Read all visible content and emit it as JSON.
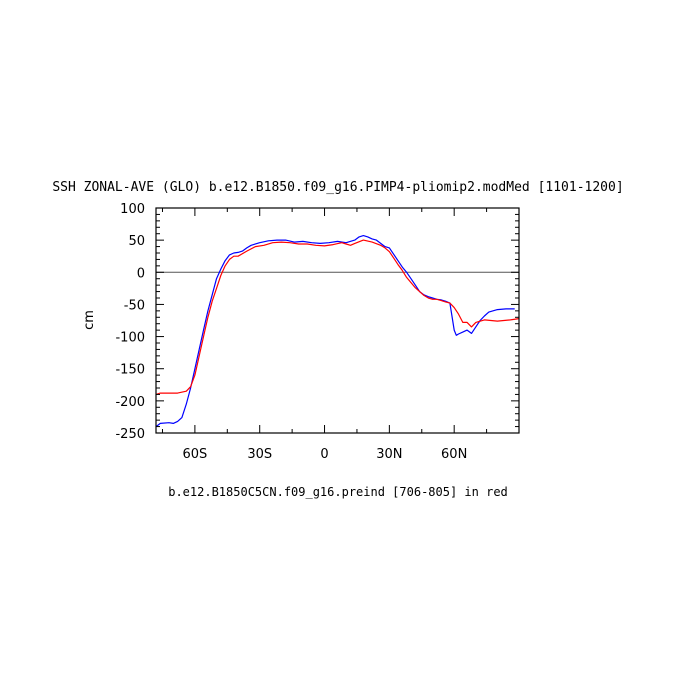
{
  "chart_data": {
    "type": "line",
    "title": "SSH ZONAL-AVE (GLO) b.e12.B1850.f09_g16.PIMP4-pliomip2.modMed [1101-1200]",
    "caption": "b.e12.B1850C5CN.f09_g16.preind [706-805] in red",
    "ylabel": "cm",
    "xlim": [
      -78,
      90
    ],
    "ylim": [
      -250,
      100
    ],
    "x_ticks": [
      {
        "value": -60,
        "label": "60S"
      },
      {
        "value": -30,
        "label": "30S"
      },
      {
        "value": 0,
        "label": "0"
      },
      {
        "value": 30,
        "label": "30N"
      },
      {
        "value": 60,
        "label": "60N"
      }
    ],
    "y_ticks": [
      {
        "value": 100,
        "label": "100"
      },
      {
        "value": 50,
        "label": "50"
      },
      {
        "value": 0,
        "label": "0"
      },
      {
        "value": -50,
        "label": "-50"
      },
      {
        "value": -100,
        "label": "-100"
      },
      {
        "value": -150,
        "label": "-150"
      },
      {
        "value": -200,
        "label": "-200"
      },
      {
        "value": -250,
        "label": "-250"
      }
    ],
    "reference_line": 0,
    "series": [
      {
        "color": "#0000ff",
        "x": [
          -78,
          -76,
          -72,
          -70,
          -68,
          -66,
          -64,
          -62,
          -60,
          -58,
          -56,
          -54,
          -52,
          -50,
          -48,
          -46,
          -44,
          -42,
          -40,
          -38,
          -36,
          -34,
          -30,
          -26,
          -22,
          -18,
          -14,
          -10,
          -6,
          -2,
          2,
          6,
          10,
          14,
          16,
          18,
          20,
          22,
          24,
          26,
          28,
          30,
          32,
          34,
          36,
          38,
          40,
          42,
          44,
          46,
          48,
          50,
          52,
          54,
          56,
          58,
          60,
          61,
          62,
          64,
          66,
          68,
          70,
          72,
          74,
          76,
          80,
          84,
          88
        ],
        "y": [
          -240,
          -235,
          -234,
          -235,
          -232,
          -226,
          -205,
          -180,
          -150,
          -120,
          -90,
          -60,
          -35,
          -10,
          5,
          18,
          27,
          30,
          31,
          33,
          38,
          42,
          46,
          49,
          50,
          50,
          47,
          48,
          46,
          45,
          46,
          48,
          46,
          50,
          55,
          57,
          55,
          52,
          50,
          45,
          40,
          38,
          28,
          18,
          8,
          0,
          -10,
          -20,
          -30,
          -35,
          -38,
          -40,
          -42,
          -43,
          -45,
          -48,
          -90,
          -98,
          -96,
          -93,
          -90,
          -95,
          -85,
          -75,
          -68,
          -62,
          -58,
          -57,
          -57
        ]
      },
      {
        "color": "#ff0000",
        "x": [
          -78,
          -76,
          -72,
          -68,
          -64,
          -62,
          -60,
          -58,
          -56,
          -54,
          -52,
          -50,
          -48,
          -46,
          -44,
          -42,
          -40,
          -36,
          -32,
          -28,
          -24,
          -20,
          -16,
          -12,
          -8,
          -4,
          0,
          4,
          8,
          10,
          12,
          14,
          18,
          22,
          26,
          28,
          30,
          32,
          34,
          36,
          38,
          40,
          42,
          44,
          46,
          48,
          50,
          52,
          54,
          56,
          58,
          60,
          62,
          64,
          66,
          68,
          70,
          74,
          80,
          86,
          90
        ],
        "y": [
          -190,
          -188,
          -188,
          -188,
          -185,
          -178,
          -160,
          -130,
          -100,
          -70,
          -45,
          -25,
          -5,
          10,
          20,
          25,
          25,
          33,
          40,
          42,
          46,
          47,
          46,
          44,
          44,
          42,
          41,
          43,
          46,
          44,
          42,
          45,
          50,
          47,
          42,
          38,
          32,
          22,
          12,
          3,
          -8,
          -16,
          -24,
          -30,
          -36,
          -40,
          -42,
          -42,
          -44,
          -46,
          -48,
          -55,
          -65,
          -78,
          -78,
          -85,
          -78,
          -74,
          -76,
          -74,
          -72
        ]
      }
    ]
  }
}
